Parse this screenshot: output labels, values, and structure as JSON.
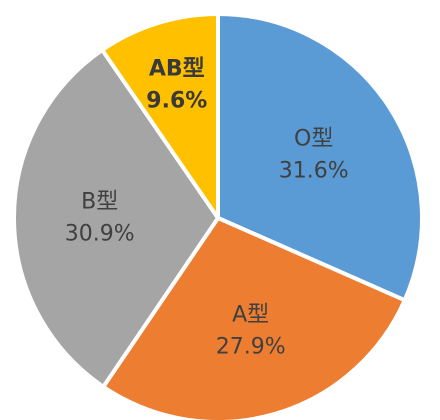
{
  "chart_data": {
    "type": "pie",
    "title": "",
    "slices": [
      {
        "name": "O型",
        "value": 31.6,
        "label": "31.6%",
        "color": "#5B9BD5"
      },
      {
        "name": "A型",
        "value": 27.9,
        "label": "27.9%",
        "color": "#ED7D31"
      },
      {
        "name": "B型",
        "value": 30.9,
        "label": "30.9%",
        "color": "#A5A5A5"
      },
      {
        "name": "AB型",
        "value": 9.6,
        "label": "9.6%",
        "color": "#FFC000"
      }
    ],
    "start_angle_deg": 0,
    "direction": "clockwise",
    "legend": "none"
  }
}
